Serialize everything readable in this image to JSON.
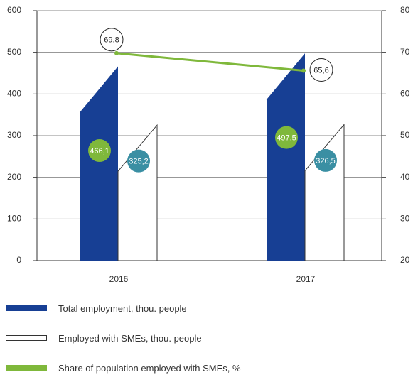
{
  "chart_data": {
    "type": "bar",
    "categories": [
      "2016",
      "2017"
    ],
    "series": [
      {
        "name": "Total employment, thou. people",
        "type": "bar",
        "axis": "left",
        "values": [
          466.1,
          497.5
        ],
        "labels": [
          "466,1",
          "497,5"
        ],
        "color": "#173f94",
        "label_bubble_color": "#7fb83b"
      },
      {
        "name": "Employed with SMEs, thou. people",
        "type": "bar",
        "axis": "left",
        "values": [
          325.2,
          326.5
        ],
        "labels": [
          "325,2",
          "326,5"
        ],
        "color": "#ffffff",
        "label_bubble_color": "#3a8fa3"
      },
      {
        "name": "Share of population employed with SMEs, %",
        "type": "line",
        "axis": "right",
        "values": [
          69.8,
          65.6
        ],
        "labels": [
          "69,8",
          "65,6"
        ],
        "color": "#7fb83b"
      }
    ],
    "y_left": {
      "range": [
        0,
        600
      ],
      "ticks": [
        "0",
        "100",
        "200",
        "300",
        "400",
        "500",
        "600"
      ]
    },
    "y_right": {
      "range": [
        20,
        80
      ],
      "ticks": [
        "20",
        "30",
        "40",
        "50",
        "60",
        "70",
        "80"
      ]
    },
    "grid": true,
    "legend_position": "bottom-left"
  },
  "legend": [
    {
      "label": "Total employment, thou. people",
      "fill": "#173f94",
      "stroke": "#173f94"
    },
    {
      "label": "Employed with SMEs, thou. people",
      "fill": "#ffffff",
      "stroke": "#333333"
    },
    {
      "label": "Share of population employed with SMEs, %",
      "fill": "#7fb83b",
      "stroke": "#7fb83b"
    }
  ]
}
